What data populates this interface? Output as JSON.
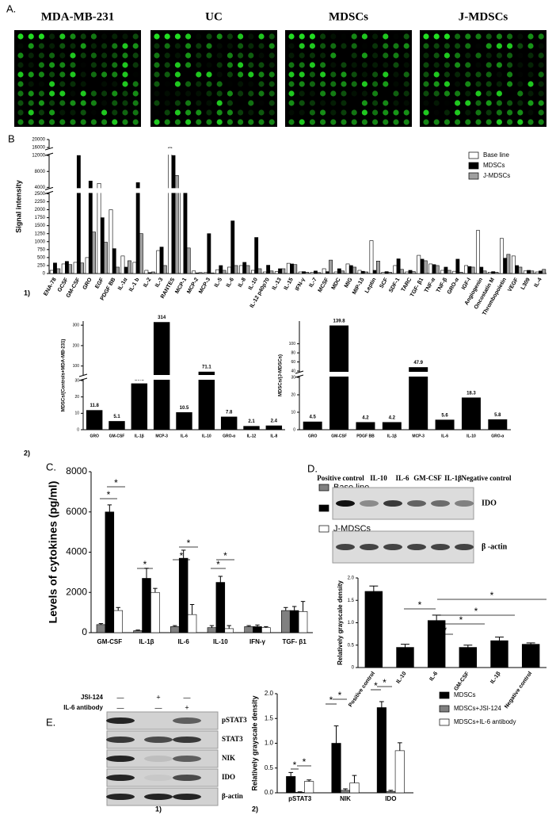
{
  "panel_labels": {
    "A": "A.",
    "B": "B",
    "C": "C.",
    "D": "D.",
    "E": "E."
  },
  "sublabels": [
    "1)",
    "2)"
  ],
  "array_titles": [
    "MDA-MB-231",
    "UC",
    "MDSCs",
    "J-MDSCs"
  ],
  "significance_label": "*",
  "blot_D": {
    "lanes": [
      "Positive control",
      "IL-10",
      "IL-6",
      "GM-CSF",
      "IL-1β",
      "Negative control"
    ],
    "rows": [
      "IDO",
      "β -actin"
    ]
  },
  "blot_E": {
    "treatments": [
      {
        "label": "JSI-124",
        "signs": [
          "—",
          "+",
          "—"
        ]
      },
      {
        "label": "IL-6 antibody",
        "signs": [
          "—",
          "—",
          "+"
        ]
      }
    ],
    "rows": [
      "pSTAT3",
      "STAT3",
      "NIK",
      "IDO",
      "β-actin"
    ]
  },
  "chart_data": [
    {
      "type": "bar",
      "y_label": "Signal intensity",
      "categories": [
        "ENA-78",
        "GCSF",
        "GM-CSF",
        "GRO",
        "EGF",
        "PDGF BB",
        "IL-1α",
        "IL-1 b",
        "IL-2",
        "IL-3",
        "RANTES",
        "MCP-1",
        "MCP-2",
        "MCP-3",
        "IL-5",
        "IL-6",
        "IL-8",
        "IL-10",
        "IL-12 p40p70",
        "IL-13",
        "IL-15",
        "IFN-γ",
        "IL-7",
        "MCSF",
        "MDC",
        "MIG",
        "MIP-1δ",
        "Leptin",
        "SCF",
        "SDF-1",
        "TARC",
        "TGF- β1",
        "TNF-α",
        "TNF-β",
        "GRO-α",
        "IGF-I",
        "Angiogenin",
        "Oncostatin M",
        "Thrombopoietin",
        "VEGF",
        "L309",
        "IL-4"
      ],
      "series": [
        {
          "name": "Base line",
          "color": "#ffffff",
          "values": [
            100,
            300,
            350,
            500,
            5000,
            2000,
            550,
            350,
            100,
            720,
            16000,
            3000,
            80,
            30,
            120,
            200,
            250,
            100,
            50,
            60,
            320,
            50,
            40,
            150,
            50,
            300,
            100,
            1030,
            40,
            250,
            50,
            570,
            300,
            100,
            70,
            250,
            1350,
            40,
            1100,
            550,
            80,
            50
          ]
        },
        {
          "name": "MDSCs",
          "color": "#000000",
          "values": [
            330,
            380,
            12000,
            5600,
            1750,
            780,
            200,
            5200,
            30,
            830,
            12000,
            3600,
            20,
            1250,
            250,
            1650,
            350,
            1130,
            260,
            150,
            300,
            60,
            80,
            60,
            150,
            250,
            70,
            100,
            60,
            460,
            100,
            450,
            280,
            200,
            450,
            220,
            200,
            60,
            480,
            250,
            100,
            80
          ]
        },
        {
          "name": "J-MDSCs",
          "color": "#a0a0a0",
          "values": [
            150,
            280,
            330,
            1300,
            980,
            200,
            400,
            1250,
            50,
            250,
            7000,
            800,
            30,
            20,
            100,
            250,
            250,
            150,
            80,
            150,
            280,
            40,
            30,
            420,
            80,
            200,
            50,
            390,
            40,
            130,
            60,
            400,
            250,
            100,
            40,
            200,
            80,
            40,
            600,
            200,
            80,
            130
          ]
        }
      ],
      "ylim": [
        0,
        20000
      ],
      "yticks": [
        0,
        250,
        500,
        750,
        1000,
        1250,
        1500,
        1750,
        2000,
        2250,
        2500,
        4000,
        8000,
        12000,
        16000,
        20000
      ],
      "y_breaks": [
        [
          2500,
          4000
        ],
        [
          12000,
          16000
        ]
      ],
      "legend": "upper right"
    },
    {
      "type": "bar",
      "y_label": "MDSCs/(Controls+MDA-MB-231)",
      "categories": [
        "GRO",
        "GM-CSF",
        "IL-1β",
        "MCP-3",
        "IL-6",
        "IL-10",
        "GRO-α",
        "IL-12",
        "IL-8"
      ],
      "values": [
        11.8,
        5.1,
        28.1,
        314,
        10.5,
        71.1,
        7.8,
        2.1,
        2.4
      ],
      "color": "#000000",
      "ylim": [
        0,
        320
      ],
      "yticks": [
        0,
        10,
        20,
        30,
        100,
        200,
        300
      ],
      "y_breaks": [
        [
          30,
          60
        ]
      ]
    },
    {
      "type": "bar",
      "y_label": "MDSCs/(J-MDSCs)",
      "categories": [
        "GRO",
        "GM-CSF",
        "PDGF BB",
        "IL-1β",
        "MCP-3",
        "IL-6",
        "IL-10",
        "GRO-α"
      ],
      "values": [
        4.5,
        139.8,
        4.2,
        4.2,
        47.9,
        5.6,
        18.3,
        5.8
      ],
      "color": "#000000",
      "ylim": [
        0,
        150
      ],
      "yticks": [
        0,
        10,
        20,
        30,
        40,
        60,
        80,
        100
      ],
      "y_breaks": [
        [
          30,
          40
        ]
      ]
    },
    {
      "type": "bar",
      "y_label": "Levels of cytokines (pg/ml)",
      "categories": [
        "GM-CSF",
        "IL-1β",
        "IL-6",
        "IL-10",
        "IFN-γ",
        "TGF- β1"
      ],
      "series": [
        {
          "name": "Base line",
          "color": "#808080",
          "values": [
            400,
            100,
            300,
            250,
            300,
            1100
          ],
          "errors": [
            50,
            30,
            50,
            100,
            50,
            150
          ]
        },
        {
          "name": "MDSCs",
          "color": "#000000",
          "values": [
            6000,
            2700,
            3700,
            2500,
            300,
            1100
          ],
          "errors": [
            350,
            500,
            400,
            300,
            80,
            200
          ]
        },
        {
          "name": "J-MDSCs",
          "color": "#ffffff",
          "values": [
            1100,
            2000,
            900,
            200,
            250,
            1050
          ],
          "errors": [
            150,
            200,
            500,
            150,
            50,
            500
          ]
        }
      ],
      "ylim": [
        0,
        8000
      ],
      "yticks": [
        0,
        2000,
        4000,
        6000,
        8000
      ],
      "legend": "upper right"
    },
    {
      "type": "bar",
      "y_label": "Relatively grayscale density",
      "categories": [
        "Positive control",
        "IL-10",
        "IL-6",
        "GM-CSF",
        "IL-1β",
        "Negative control"
      ],
      "values": [
        1.7,
        0.45,
        1.05,
        0.45,
        0.6,
        0.52
      ],
      "errors": [
        0.12,
        0.07,
        0.12,
        0.05,
        0.08,
        0.03
      ],
      "color": "#000000",
      "ylim": [
        0,
        2.0
      ],
      "yticks": [
        0,
        0.5,
        {
          "value": 1.0,
          "label": "1.0"
        },
        1.5,
        {
          "value": 2.0,
          "label": "2.0"
        }
      ]
    },
    {
      "type": "bar",
      "y_label": "Relatively grayscale density",
      "categories": [
        "pSTAT3",
        "NIK",
        "IDO"
      ],
      "series": [
        {
          "name": "MDSCs",
          "color": "#000000",
          "values": [
            0.33,
            1.0,
            1.72
          ],
          "errors": [
            0.08,
            0.35,
            0.12
          ]
        },
        {
          "name": "MDSCs+JSI-124",
          "color": "#808080",
          "values": [
            0.01,
            0.05,
            0.03
          ],
          "errors": [
            0.01,
            0.03,
            0.02
          ]
        },
        {
          "name": "MDSCs+IL-6 antibody",
          "color": "#ffffff",
          "values": [
            0.23,
            0.2,
            0.85
          ],
          "errors": [
            0.03,
            0.15,
            0.16
          ]
        }
      ],
      "ylim": [
        0,
        2.0
      ],
      "yticks": [
        {
          "value": 0,
          "label": "0.0"
        },
        0.5,
        {
          "value": 1.0,
          "label": "1.0"
        },
        1.5,
        {
          "value": 2.0,
          "label": "2.0"
        }
      ],
      "legend": "upper right"
    }
  ]
}
